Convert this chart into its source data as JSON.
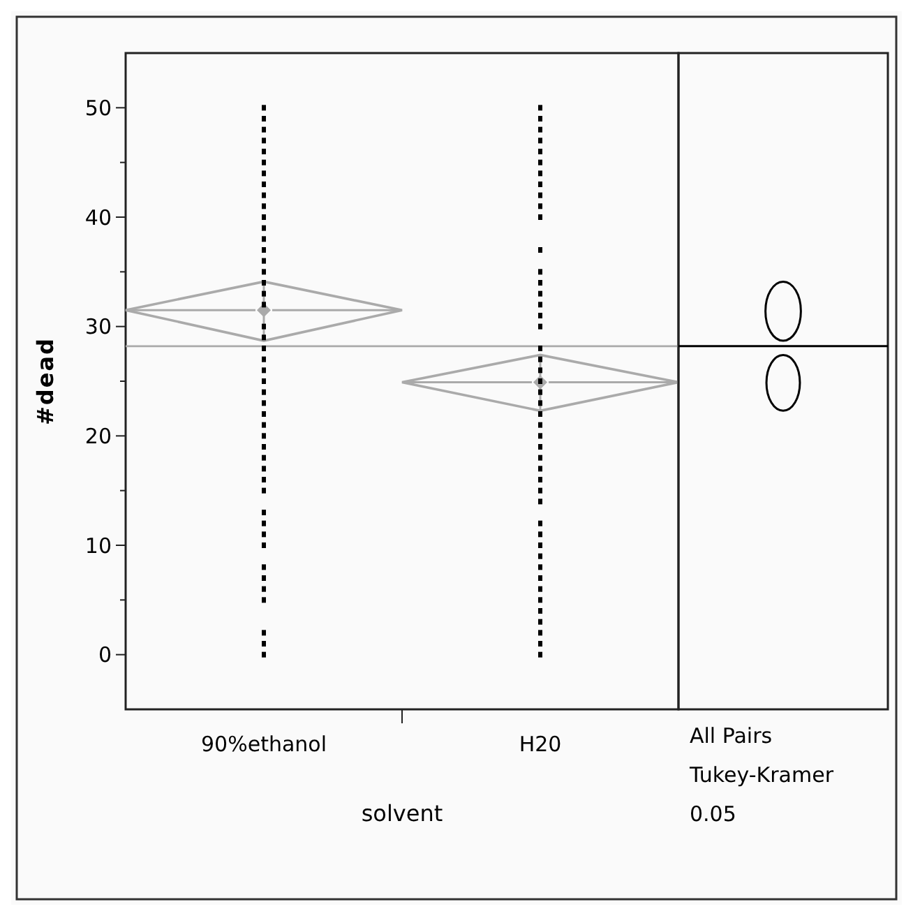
{
  "chart_data": [
    {
      "type": "scatter",
      "xlabel": "solvent",
      "ylabel": "#dead",
      "categories": [
        "90%ethanol",
        "H20"
      ],
      "ylim": [
        -5,
        55
      ],
      "yticks": [
        0,
        {
          "value": 5,
          "label": null
        },
        10,
        {
          "value": 15,
          "label": null
        },
        20,
        {
          "value": 25,
          "label": null
        },
        30,
        {
          "value": 35,
          "label": null
        },
        40,
        {
          "value": 45,
          "label": null
        },
        50
      ],
      "series": [
        {
          "color": "#000000",
          "marker": "square",
          "x": [
            "90%ethanol",
            "90%ethanol",
            "90%ethanol",
            "90%ethanol",
            "90%ethanol",
            "90%ethanol",
            "90%ethanol",
            "90%ethanol",
            "90%ethanol",
            "90%ethanol",
            "90%ethanol",
            "90%ethanol",
            "90%ethanol",
            "90%ethanol",
            "90%ethanol",
            "90%ethanol",
            "90%ethanol",
            "90%ethanol",
            "90%ethanol",
            "90%ethanol",
            "90%ethanol",
            "90%ethanol",
            "90%ethanol",
            "90%ethanol",
            "90%ethanol",
            "90%ethanol",
            "90%ethanol",
            "90%ethanol",
            "90%ethanol",
            "90%ethanol",
            "90%ethanol",
            "90%ethanol",
            "90%ethanol",
            "90%ethanol",
            "90%ethanol",
            "90%ethanol",
            "90%ethanol",
            "90%ethanol",
            "90%ethanol",
            "90%ethanol",
            "90%ethanol",
            "90%ethanol",
            "90%ethanol",
            "90%ethanol",
            "90%ethanol",
            "90%ethanol"
          ],
          "values": [
            50,
            49,
            48,
            47,
            46,
            45,
            44,
            43,
            42,
            41,
            40,
            39,
            38,
            37,
            36,
            35,
            34,
            33,
            32,
            30,
            29,
            28,
            27,
            26,
            25,
            24,
            23,
            22,
            21,
            20,
            19,
            18,
            17,
            16,
            15,
            13,
            12,
            11,
            10,
            8,
            7,
            6,
            5,
            2,
            1,
            0
          ]
        },
        {
          "color": "#000000",
          "marker": "square",
          "x": [
            "H20",
            "H20",
            "H20",
            "H20",
            "H20",
            "H20",
            "H20",
            "H20",
            "H20",
            "H20",
            "H20",
            "H20",
            "H20",
            "H20",
            "H20",
            "H20",
            "H20",
            "H20",
            "H20",
            "H20",
            "H20",
            "H20",
            "H20",
            "H20",
            "H20",
            "H20",
            "H20",
            "H20",
            "H20",
            "H20",
            "H20",
            "H20",
            "H20",
            "H20",
            "H20",
            "H20",
            "H20",
            "H20",
            "H20",
            "H20",
            "H20",
            "H20",
            "H20",
            "H20",
            "H20",
            "H20"
          ],
          "values": [
            50,
            49,
            48,
            47,
            46,
            45,
            44,
            43,
            42,
            41,
            40,
            37,
            35,
            34,
            33,
            32,
            31,
            30,
            28,
            27,
            26,
            25,
            24,
            23,
            22,
            21,
            20,
            19,
            18,
            17,
            16,
            15,
            14,
            12,
            11,
            10,
            9,
            8,
            7,
            6,
            5,
            4,
            3,
            2,
            1,
            0
          ]
        },
        {
          "color": "#aaaaaa",
          "marker": "diamond",
          "values": [
            31.5,
            24.9
          ],
          "errors": [
            [
              28.7,
              34.1
            ],
            [
              22.3,
              27.4
            ]
          ]
        }
      ],
      "ref_lines": [
        {
          "axis": "y",
          "value": 28.2,
          "color": "#aaaaaa"
        }
      ]
    },
    {
      "type": "other",
      "annotations": [
        "All Pairs",
        "Tukey-Kramer",
        "0.05"
      ]
    }
  ]
}
